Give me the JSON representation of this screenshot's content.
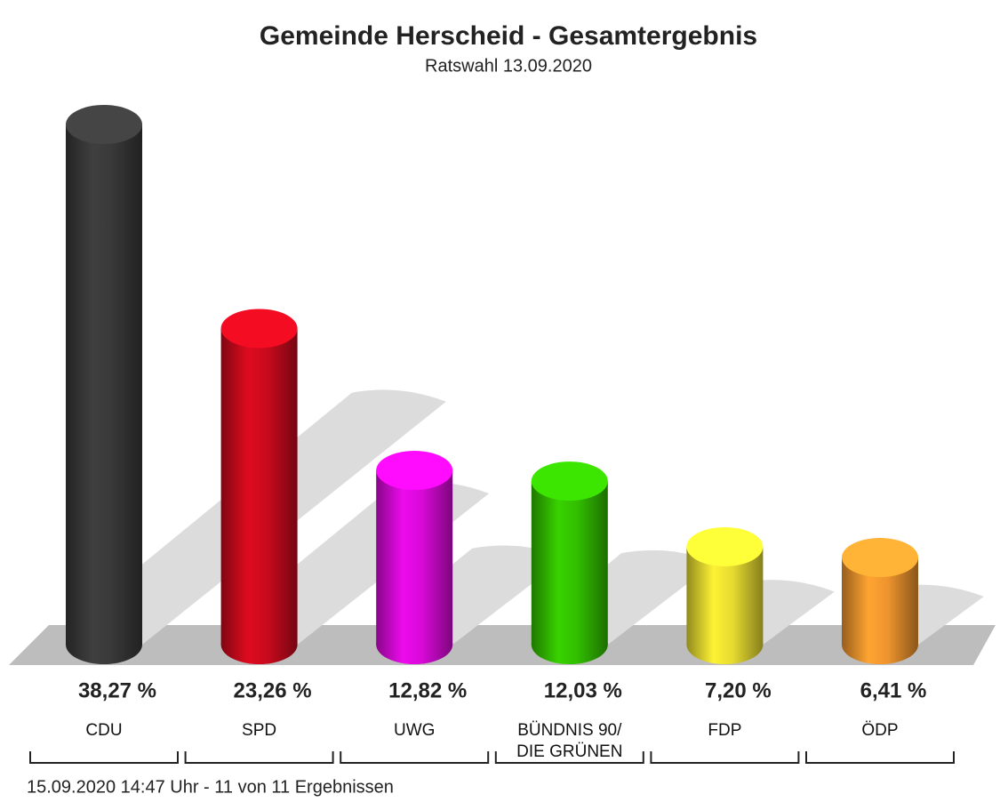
{
  "chart_data": {
    "type": "bar",
    "title": "Gemeinde Herscheid - Gesamtergebnis",
    "subtitle": "Ratswahl 13.09.2020",
    "categories": [
      "CDU",
      "SPD",
      "UWG",
      "BÜNDNIS 90/\nDIE GRÜNEN",
      "FDP",
      "ÖDP"
    ],
    "values": [
      38.27,
      23.26,
      12.82,
      12.03,
      7.2,
      6.41
    ],
    "value_labels": [
      "38,27 %",
      "23,26 %",
      "12,82 %",
      "12,03 %",
      "7,20 %",
      "6,41 %"
    ],
    "colors": [
      "#3c3c3c",
      "#d40a1e",
      "#e20ae2",
      "#35c800",
      "#f2e632",
      "#fb9c30"
    ],
    "footer": "15.09.2020 14:47 Uhr - 11 von 11 Ergebnissen"
  }
}
